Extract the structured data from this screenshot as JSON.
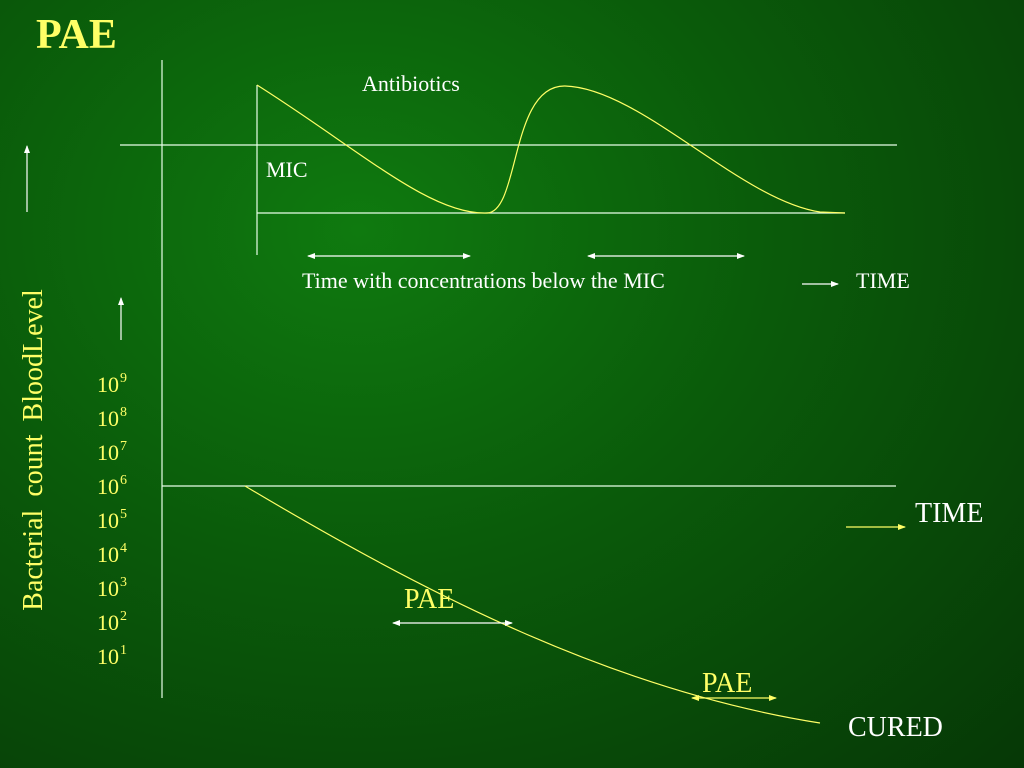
{
  "title": "PAE",
  "top_diagram": {
    "drug_label": "Antibiotics",
    "mic_label": "MIC",
    "below_mic_label": "Time with concentrations below the MIC",
    "time_label": "TIME"
  },
  "bottom_diagram": {
    "y_ticks": [
      {
        "base": "10",
        "exp": "9"
      },
      {
        "base": "10",
        "exp": "8"
      },
      {
        "base": "10",
        "exp": "7"
      },
      {
        "base": "10",
        "exp": "6"
      },
      {
        "base": "10",
        "exp": "5"
      },
      {
        "base": "10",
        "exp": "4"
      },
      {
        "base": "10",
        "exp": "3"
      },
      {
        "base": "10",
        "exp": "2"
      },
      {
        "base": "10",
        "exp": "1"
      }
    ],
    "pae_label_1": "PAE",
    "pae_label_2": "PAE",
    "time_label": "TIME",
    "cured_label": "CURED"
  },
  "vertical_label": "Bacterial count  BloodLevel",
  "colors": {
    "accent": "#ffff66",
    "lines": "#ffffff",
    "background": "#0a5a0a"
  }
}
